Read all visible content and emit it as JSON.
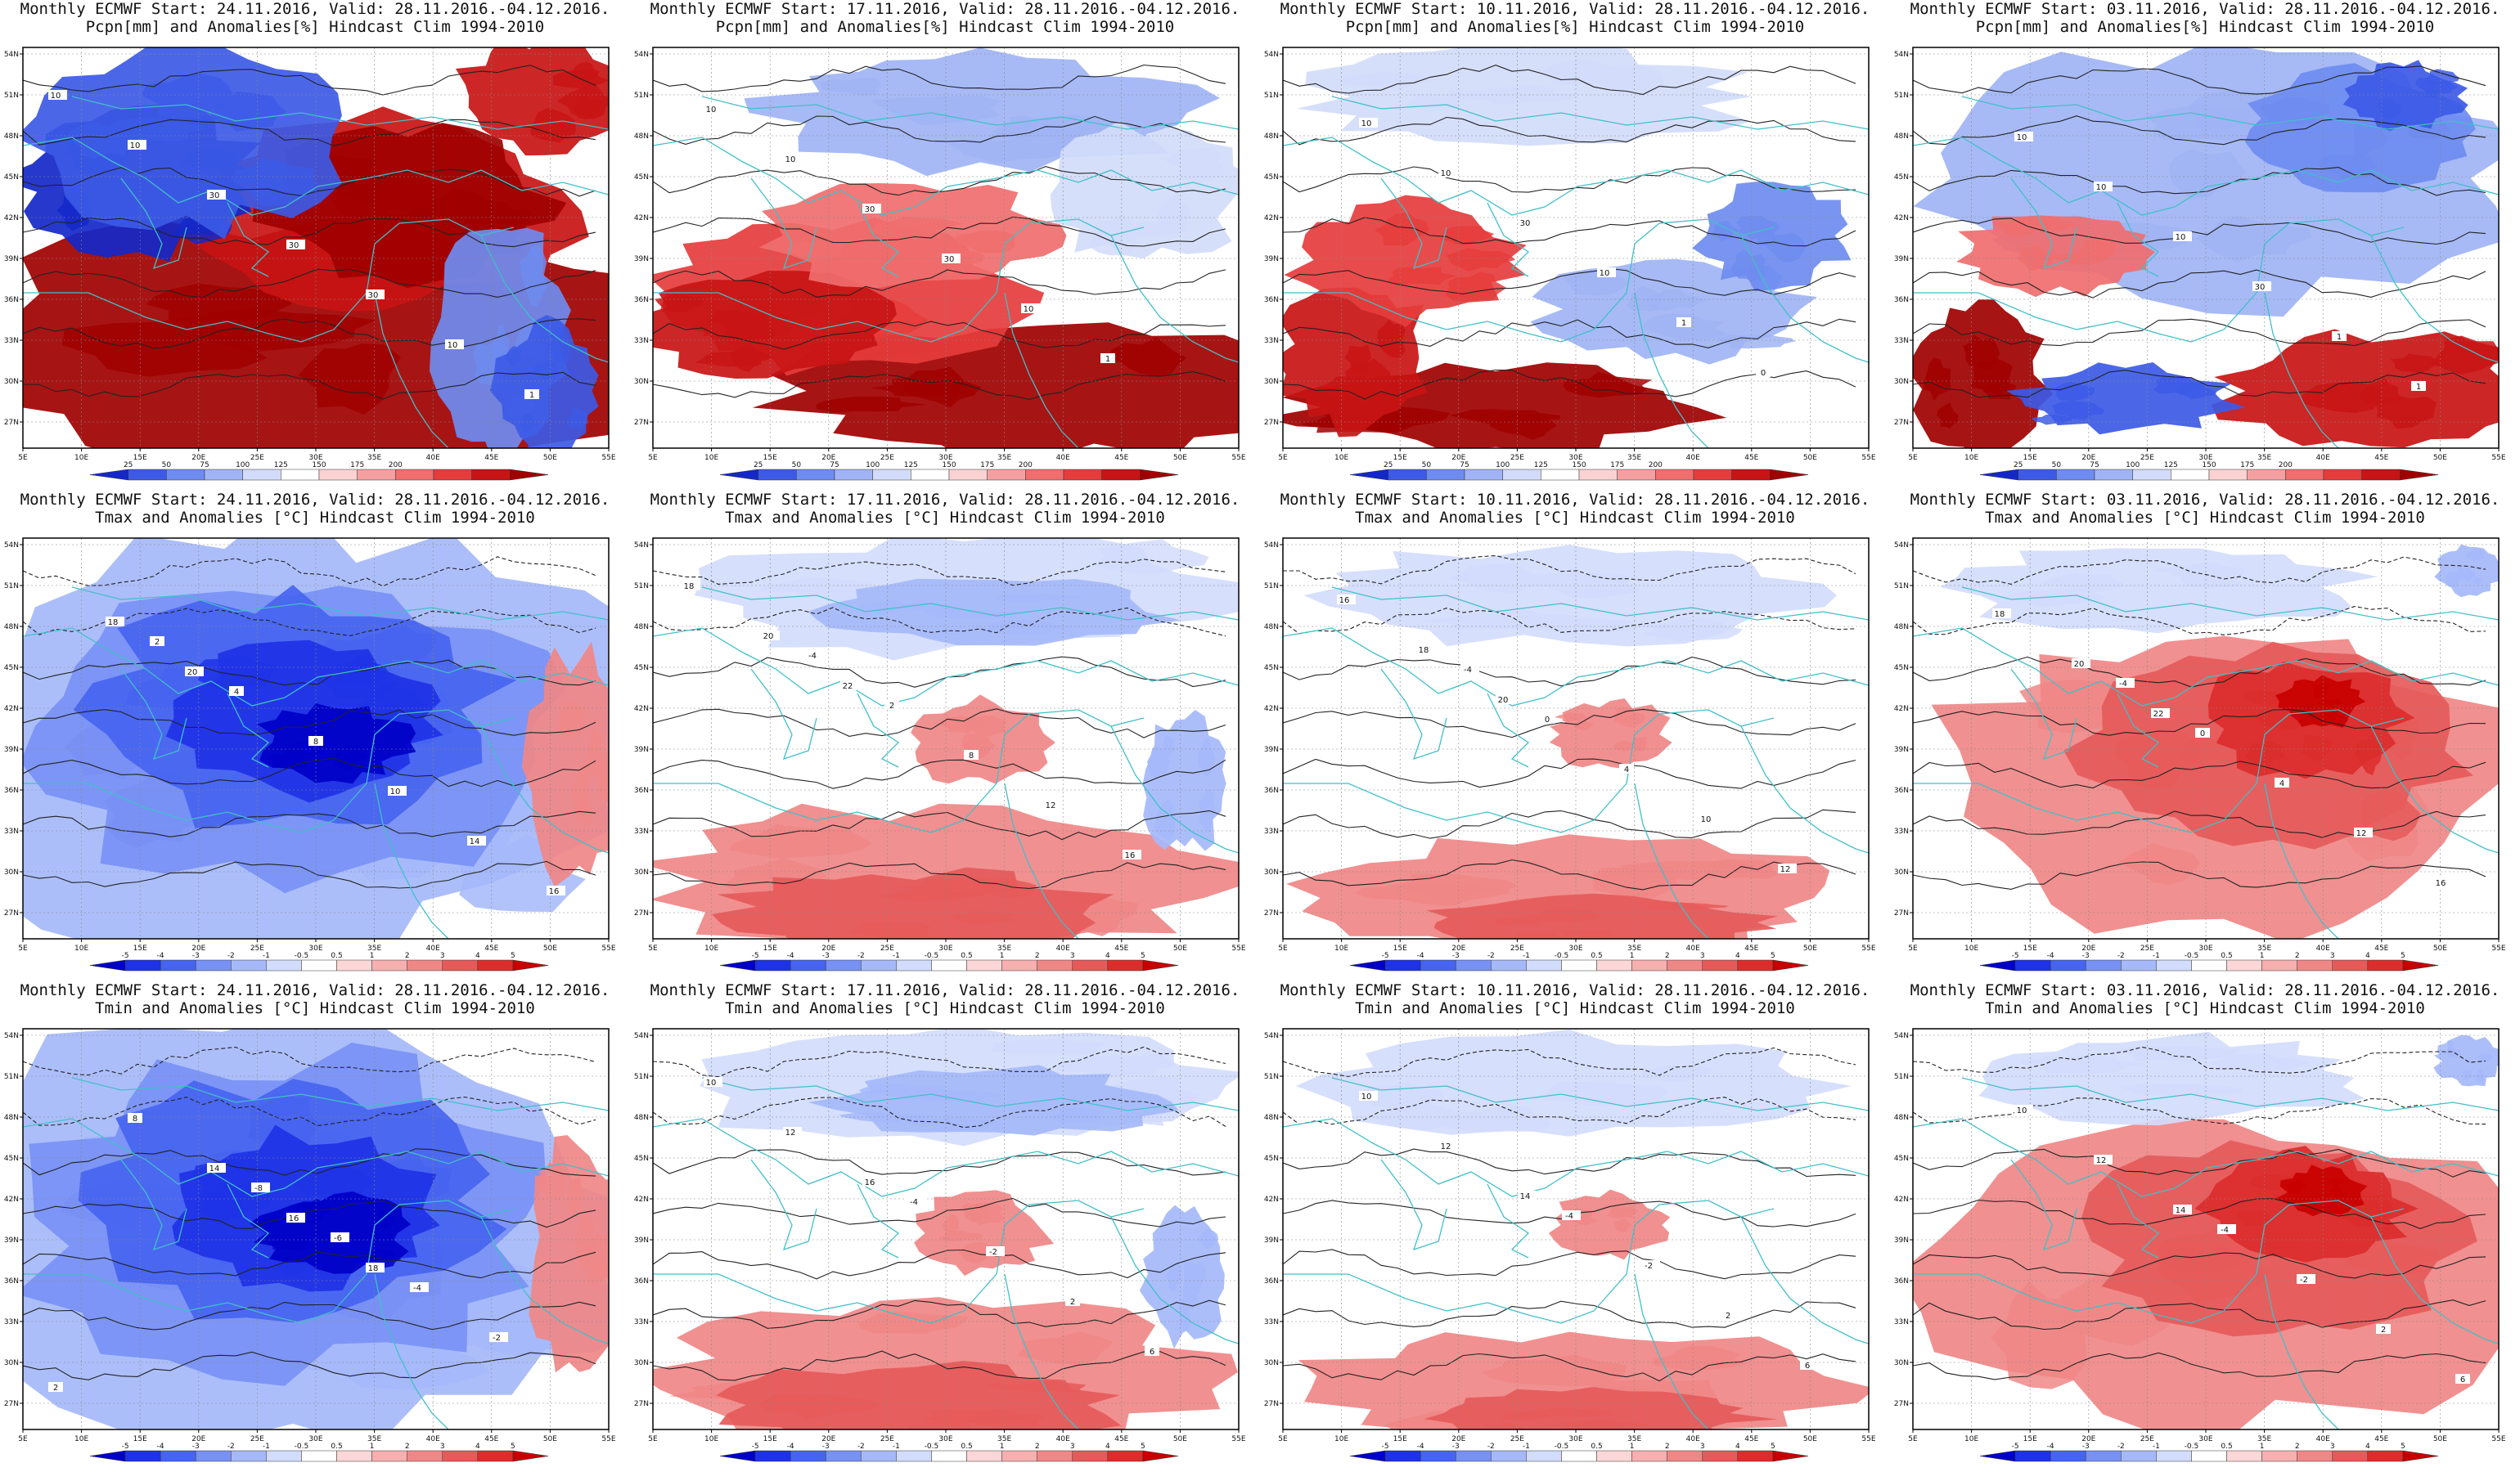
{
  "figure": {
    "panels": [
      {
        "id": "p-r1c1",
        "title_line1": "Monthly ECMWF Start: 24.11.2016, Valid: 28.11.2016.-04.12.2016.",
        "title_line2": "Pcpn[mm] and Anomalies[%] Hindcast Clim 1994-2010",
        "variable": "precipitation",
        "anomaly_pattern": "wet-south-dry-north",
        "contour_labels": [
          "10",
          "10",
          "30",
          "30",
          "30",
          "10",
          "1"
        ]
      },
      {
        "id": "p-r1c2",
        "title_line1": "Monthly ECMWF Start: 17.11.2016, Valid: 28.11.2016.-04.12.2016.",
        "title_line2": "Pcpn[mm] and Anomalies[%] Hindcast Clim 1994-2010",
        "variable": "precipitation",
        "anomaly_pattern": "wet-south-mixed-north",
        "contour_labels": [
          "10",
          "10",
          "30",
          "30",
          "10",
          "1"
        ]
      },
      {
        "id": "p-r1c3",
        "title_line1": "Monthly ECMWF Start: 10.11.2016, Valid: 28.11.2016.-04.12.2016.",
        "title_line2": "Pcpn[mm] and Anomalies[%] Hindcast Clim 1994-2010",
        "variable": "precipitation",
        "anomaly_pattern": "mixed",
        "contour_labels": [
          "10",
          "10",
          "30",
          "10",
          "1",
          "0"
        ]
      },
      {
        "id": "p-r1c4",
        "title_line1": "Monthly ECMWF Start: 03.11.2016, Valid: 28.11.2016.-04.12.2016.",
        "title_line2": "Pcpn[mm] and Anomalies[%] Hindcast Clim 1994-2010",
        "variable": "precipitation",
        "anomaly_pattern": "dry-north-wet-south",
        "contour_labels": [
          "10",
          "10",
          "10",
          "30",
          "1",
          "1"
        ]
      },
      {
        "id": "p-r2c1",
        "title_line1": "Monthly ECMWF Start: 24.11.2016, Valid: 28.11.2016.-04.12.2016.",
        "title_line2": "Tmax and Anomalies [°C] Hindcast Clim 1994-2010",
        "variable": "temperature",
        "anomaly_pattern": "strong-cold",
        "contour_labels": [
          "2",
          "4",
          "8",
          "10",
          "14",
          "16",
          "18",
          "20"
        ]
      },
      {
        "id": "p-r2c2",
        "title_line1": "Monthly ECMWF Start: 17.11.2016, Valid: 28.11.2016.-04.12.2016.",
        "title_line2": "Tmax and Anomalies [°C] Hindcast Clim 1994-2010",
        "variable": "temperature",
        "anomaly_pattern": "cold-north-warm-south",
        "contour_labels": [
          "-4",
          "2",
          "8",
          "12",
          "16",
          "18",
          "20",
          "22"
        ]
      },
      {
        "id": "p-r2c3",
        "title_line1": "Monthly ECMWF Start: 10.11.2016, Valid: 28.11.2016.-04.12.2016.",
        "title_line2": "Tmax and Anomalies [°C] Hindcast Clim 1994-2010",
        "variable": "temperature",
        "anomaly_pattern": "near-normal-warm-south",
        "contour_labels": [
          "-4",
          "0",
          "4",
          "10",
          "12",
          "16",
          "18",
          "20"
        ]
      },
      {
        "id": "p-r2c4",
        "title_line1": "Monthly ECMWF Start: 03.11.2016, Valid: 28.11.2016.-04.12.2016.",
        "title_line2": "Tmax and Anomalies [°C] Hindcast Clim 1994-2010",
        "variable": "temperature",
        "anomaly_pattern": "warm-east",
        "contour_labels": [
          "-4",
          "0",
          "4",
          "12",
          "16",
          "18",
          "20",
          "22"
        ]
      },
      {
        "id": "p-r3c1",
        "title_line1": "Monthly ECMWF Start: 24.11.2016, Valid: 28.11.2016.-04.12.2016.",
        "title_line2": "Tmin and Anomalies [°C] Hindcast Clim 1994-2010",
        "variable": "temperature",
        "anomaly_pattern": "strong-cold",
        "contour_labels": [
          "-8",
          "-6",
          "-4",
          "-2",
          "2",
          "8",
          "14",
          "16",
          "18"
        ]
      },
      {
        "id": "p-r3c2",
        "title_line1": "Monthly ECMWF Start: 17.11.2016, Valid: 28.11.2016.-04.12.2016.",
        "title_line2": "Tmin and Anomalies [°C] Hindcast Clim 1994-2010",
        "variable": "temperature",
        "anomaly_pattern": "cold-north-warm-south",
        "contour_labels": [
          "-4",
          "-2",
          "2",
          "6",
          "10",
          "12",
          "16"
        ]
      },
      {
        "id": "p-r3c3",
        "title_line1": "Monthly ECMWF Start: 10.11.2016, Valid: 28.11.2016.-04.12.2016.",
        "title_line2": "Tmin and Anomalies [°C] Hindcast Clim 1994-2010",
        "variable": "temperature",
        "anomaly_pattern": "near-normal-warm-south",
        "contour_labels": [
          "-4",
          "-2",
          "2",
          "6",
          "10",
          "12",
          "14"
        ]
      },
      {
        "id": "p-r3c4",
        "title_line1": "Monthly ECMWF Start: 03.11.2016, Valid: 28.11.2016.-04.12.2016.",
        "title_line2": "Tmin and Anomalies [°C] Hindcast Clim 1994-2010",
        "variable": "temperature",
        "anomaly_pattern": "warm-east",
        "contour_labels": [
          "-4",
          "-2",
          "2",
          "6",
          "10",
          "12",
          "14"
        ]
      }
    ],
    "axes": {
      "lat_ticks": [
        "54N",
        "51N",
        "48N",
        "45N",
        "42N",
        "39N",
        "36N",
        "33N",
        "30N",
        "27N"
      ],
      "lon_ticks": [
        "5E",
        "10E",
        "15E",
        "20E",
        "25E",
        "30E",
        "35E",
        "40E",
        "45E",
        "50E",
        "55E"
      ]
    },
    "colorbars": {
      "precipitation": {
        "labels": [
          "25",
          "50",
          "75",
          "100",
          "125",
          "150",
          "175",
          "200"
        ],
        "colors": [
          "#1428c8",
          "#3c5ae6",
          "#6e8cf0",
          "#a0b4f5",
          "#d2dcfa",
          "#ffffff",
          "#fad2d2",
          "#f5a0a0",
          "#f06e6e",
          "#e63c3c",
          "#c81414",
          "#a00000"
        ]
      },
      "temperature": {
        "labels": [
          "-5",
          "-4",
          "-3",
          "-2",
          "-1",
          "-0.5",
          "0.5",
          "1",
          "2",
          "3",
          "4",
          "5"
        ],
        "colors": [
          "#0000c8",
          "#1e32e6",
          "#4664f0",
          "#7891f5",
          "#a5b9fa",
          "#d2dcfc",
          "#ffffff",
          "#fcd7d7",
          "#f7afaf",
          "#f08787",
          "#e65a5a",
          "#dc2d2d",
          "#c80000"
        ]
      }
    },
    "style": {
      "coast_color": "#40c0c8",
      "contour_color": "#222222",
      "frame_color": "#000000",
      "dry_color": "#1030c0",
      "wet_color": "#a00000",
      "cold_color": "#1020c8",
      "warm_color": "#dc2020"
    }
  }
}
